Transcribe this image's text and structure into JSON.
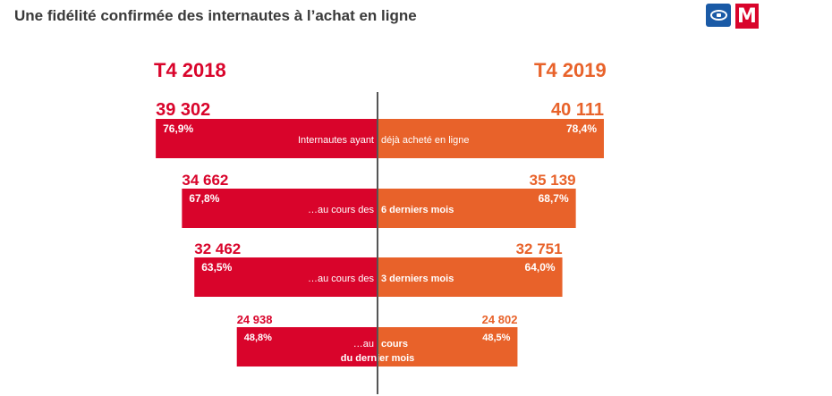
{
  "title": "Une fidélité confirmée des internautes à l’achat en ligne",
  "logos": [
    "Médiamétrie logo",
    "M logo"
  ],
  "colors": {
    "left": "#d9042b",
    "right": "#e8622a",
    "axis": "#555555"
  },
  "chart_data": {
    "type": "bar",
    "orientation": "horizontal-diverging",
    "series": [
      {
        "name": "T4 2018",
        "color": "#d9042b",
        "values": [
          39302,
          34662,
          32462,
          24938
        ],
        "value_labels": [
          "39 302",
          "34 662",
          "32 462",
          "24 938"
        ],
        "percents": [
          "76,9%",
          "67,8%",
          "63,5%",
          "48,8%"
        ]
      },
      {
        "name": "T4 2019",
        "color": "#e8622a",
        "values": [
          40111,
          35139,
          32751,
          24802
        ],
        "value_labels": [
          "40 111",
          "35 139",
          "32 751",
          "24 802"
        ],
        "percents": [
          "78,4%",
          "68,7%",
          "64,0%",
          "48,5%"
        ]
      }
    ],
    "categories": [
      {
        "left": "Internautes ayant",
        "right": "déjà acheté en ligne"
      },
      {
        "left": "…au cours des",
        "right": "6 derniers mois"
      },
      {
        "left": "…au cours des",
        "right": "3 derniers mois"
      },
      {
        "left": "…au",
        "right": "cours",
        "line2": "du dernier mois"
      }
    ],
    "scale_max": 40111
  }
}
